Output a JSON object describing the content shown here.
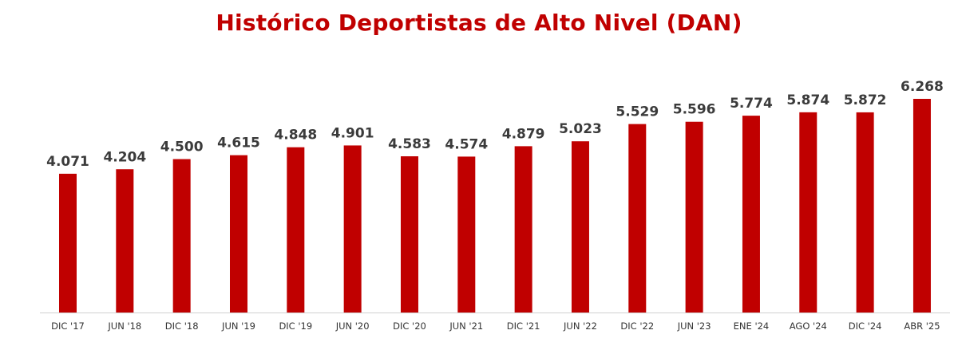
{
  "chart_data": {
    "type": "bar",
    "title": "Histórico Deportistas de Alto Nivel (DAN)",
    "xlabel": "",
    "ylabel": "",
    "categories": [
      "DIC '17",
      "JUN '18",
      "DIC '18",
      "JUN '19",
      "DIC '19",
      "JUN '20",
      "DIC '20",
      "JUN '21",
      "DIC '21",
      "JUN '22",
      "DIC '22",
      "JUN '23",
      "ENE '24",
      "AGO '24",
      "DIC '24",
      "ABR '25"
    ],
    "values": [
      4071,
      4204,
      4500,
      4615,
      4848,
      4901,
      4583,
      4574,
      4879,
      5023,
      5529,
      5596,
      5774,
      5874,
      5872,
      6268
    ],
    "value_labels": [
      "4.071",
      "4.204",
      "4.500",
      "4.615",
      "4.848",
      "4.901",
      "4.583",
      "4.574",
      "4.879",
      "5.023",
      "5.529",
      "5.596",
      "5.774",
      "5.874",
      "5.872",
      "6.268"
    ],
    "ylim": [
      0,
      6268
    ],
    "grid": false,
    "legend": "none",
    "colors": {
      "bar": "#c00000",
      "title": "#c00000",
      "axis": "#d0d0d0"
    }
  }
}
